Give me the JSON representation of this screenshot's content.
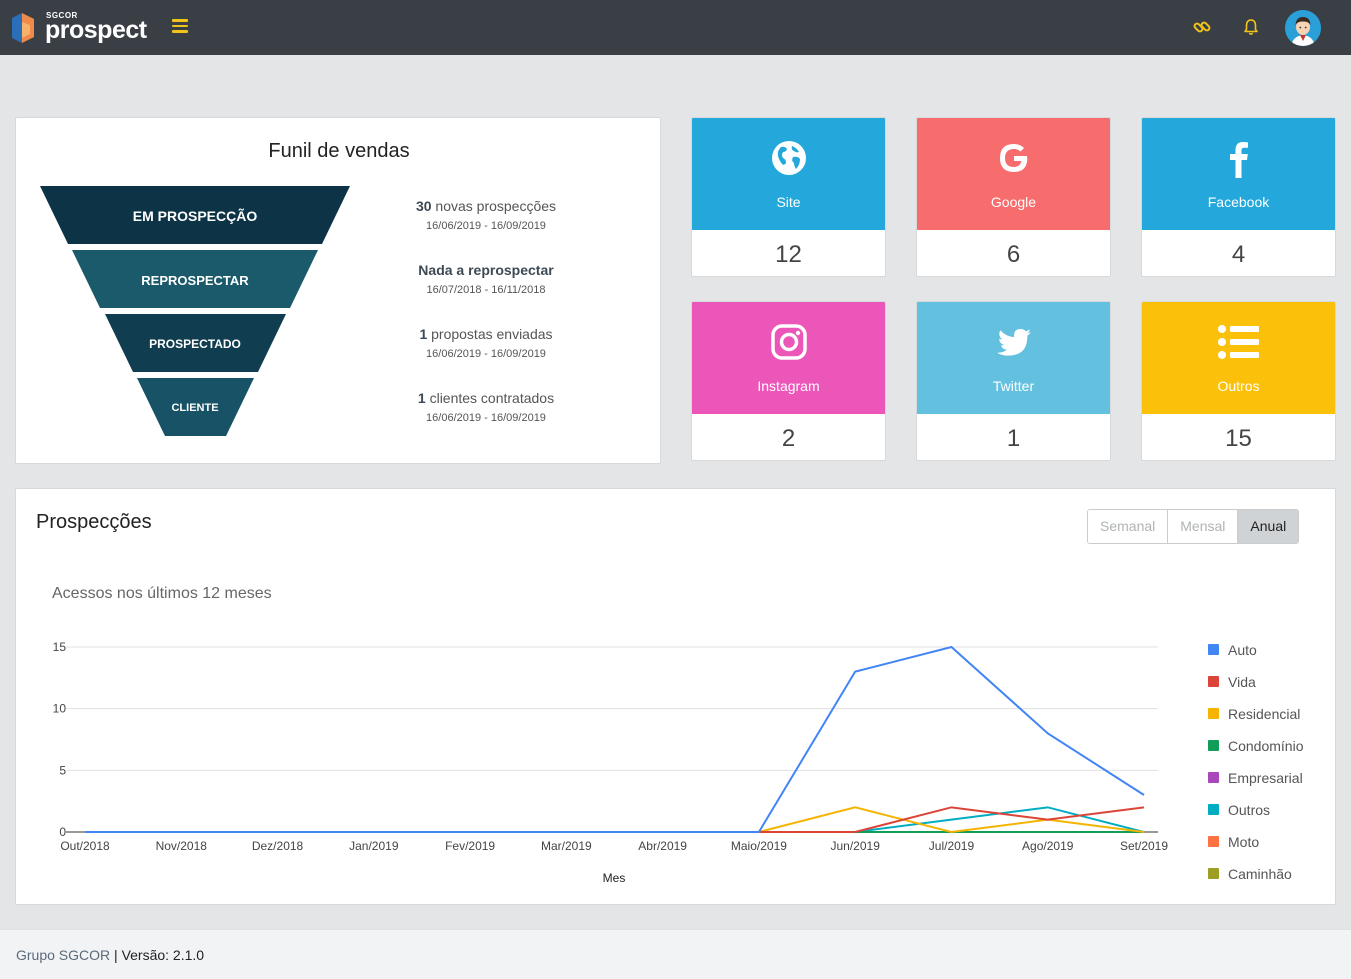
{
  "header": {
    "logo_small": "SGCOR",
    "logo_text": "prospect",
    "menu_icon": "hamburger-icon",
    "link_icon": "link-icon",
    "bell_icon": "bell-icon",
    "accent_color": "#f0c419"
  },
  "funnel": {
    "title": "Funil de vendas",
    "stages": [
      {
        "label": "EM PROSPECÇÃO"
      },
      {
        "label": "REPROSPECTAR"
      },
      {
        "label": "PROSPECTADO"
      },
      {
        "label": "CLIENTE"
      }
    ],
    "stats": [
      {
        "count": "30",
        "text": " novas prospecções",
        "dates": "16/06/2019 - 16/09/2019"
      },
      {
        "count": "Nada a reprospectar",
        "text": "",
        "dates": "16/07/2018 - 16/11/2018"
      },
      {
        "count": "1",
        "text": " propostas enviadas",
        "dates": "16/06/2019 - 16/09/2019"
      },
      {
        "count": "1",
        "text": " clientes contratados",
        "dates": "16/06/2019 - 16/09/2019"
      }
    ]
  },
  "sources": [
    {
      "name": "Site",
      "count": "12",
      "color": "#24a8dc",
      "icon": "globe-icon"
    },
    {
      "name": "Google",
      "count": "6",
      "color": "#f76c6c",
      "icon": "google-icon"
    },
    {
      "name": "Facebook",
      "count": "4",
      "color": "#24a8dc",
      "icon": "facebook-icon"
    },
    {
      "name": "Instagram",
      "count": "2",
      "color": "#ec56b8",
      "icon": "instagram-icon"
    },
    {
      "name": "Twitter",
      "count": "1",
      "color": "#63c1df",
      "icon": "twitter-icon"
    },
    {
      "name": "Outros",
      "count": "15",
      "color": "#fbc10a",
      "icon": "list-icon"
    }
  ],
  "prospeccoes": {
    "title": "Prospecções",
    "periods": [
      "Semanal",
      "Mensal",
      "Anual"
    ],
    "active_period": "Anual",
    "subtitle": "Acessos nos últimos 12 meses"
  },
  "chart_data": {
    "type": "line",
    "title": "Acessos nos últimos 12 meses",
    "xlabel": "Mes",
    "ylabel": "",
    "ylim": [
      0,
      15
    ],
    "yticks": [
      0,
      5,
      10,
      15
    ],
    "grid": true,
    "legend_position": "right",
    "categories": [
      "Out/2018",
      "Nov/2018",
      "Dez/2018",
      "Jan/2019",
      "Fev/2019",
      "Mar/2019",
      "Abr/2019",
      "Maio/2019",
      "Jun/2019",
      "Jul/2019",
      "Ago/2019",
      "Set/2019"
    ],
    "series": [
      {
        "name": "Auto",
        "color": "#4285f4",
        "values": [
          0,
          0,
          0,
          0,
          0,
          0,
          0,
          0,
          13,
          15,
          8,
          3
        ]
      },
      {
        "name": "Vida",
        "color": "#db4437",
        "values": [
          0,
          0,
          0,
          0,
          0,
          0,
          0,
          0,
          0,
          2,
          1,
          2
        ]
      },
      {
        "name": "Residencial",
        "color": "#f4b400",
        "values": [
          0,
          0,
          0,
          0,
          0,
          0,
          0,
          0,
          2,
          0,
          1,
          0
        ]
      },
      {
        "name": "Condomínio",
        "color": "#0f9d58",
        "values": [
          0,
          0,
          0,
          0,
          0,
          0,
          0,
          0,
          0,
          0,
          0,
          0
        ]
      },
      {
        "name": "Empresarial",
        "color": "#ab47bc",
        "values": [
          0,
          0,
          0,
          0,
          0,
          0,
          0,
          0,
          0,
          0,
          0,
          0
        ]
      },
      {
        "name": "Outros",
        "color": "#00acc1",
        "values": [
          0,
          0,
          0,
          0,
          0,
          0,
          0,
          0,
          0,
          1,
          2,
          0
        ]
      },
      {
        "name": "Moto",
        "color": "#ff7043",
        "values": [
          0,
          0,
          0,
          0,
          0,
          0,
          0,
          0,
          0,
          0,
          0,
          0
        ]
      },
      {
        "name": "Caminhão",
        "color": "#9e9d24",
        "values": [
          0,
          0,
          0,
          0,
          0,
          0,
          0,
          0,
          0,
          0,
          0,
          0
        ]
      }
    ]
  },
  "footer": {
    "company": "Grupo SGCOR",
    "separator": " | ",
    "version": "Versão: 2.1.0"
  }
}
